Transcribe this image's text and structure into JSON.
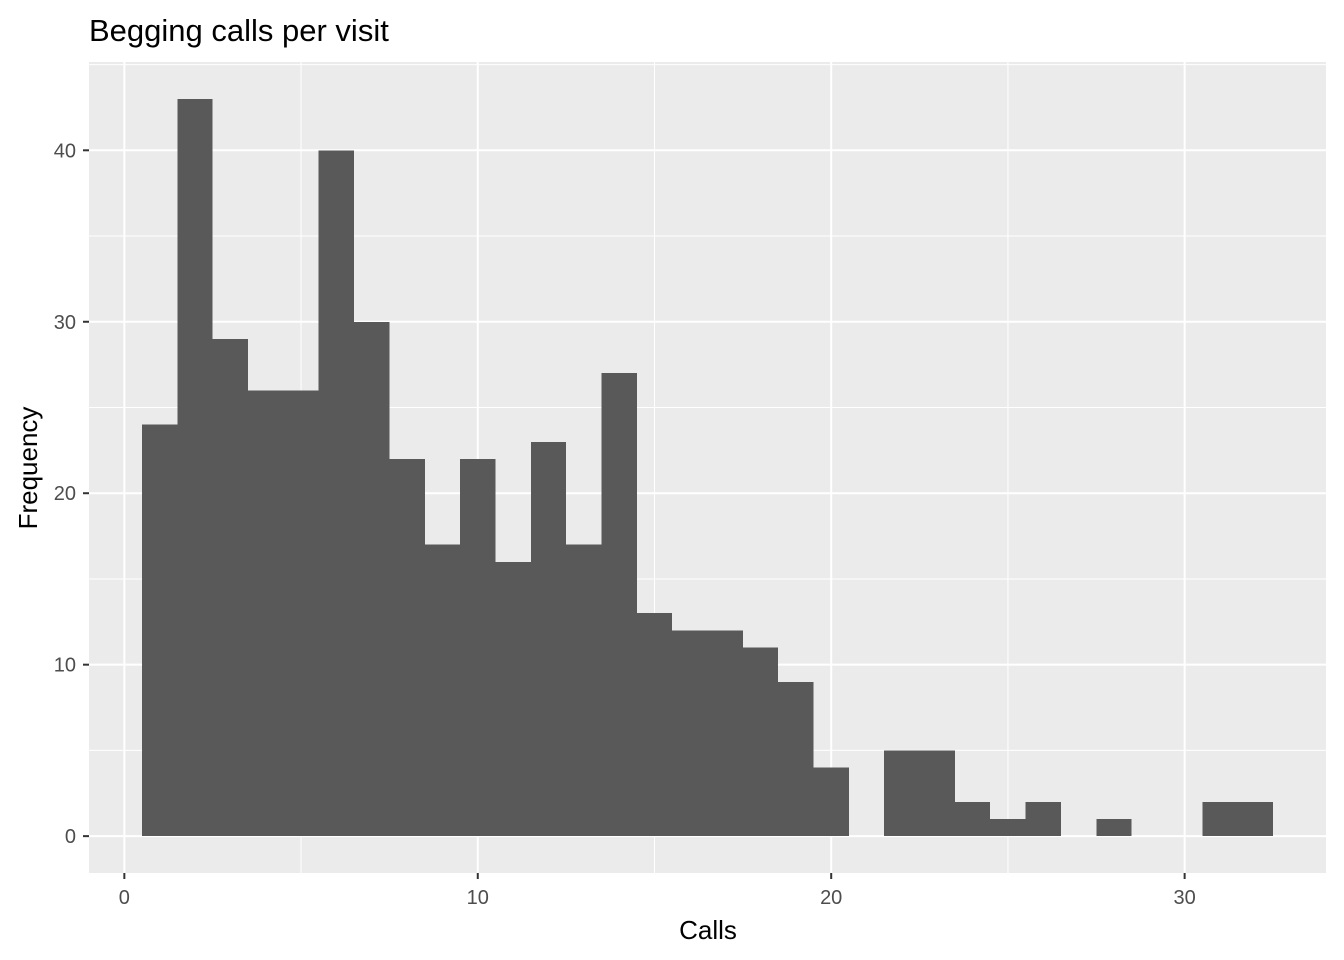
{
  "chart_data": {
    "type": "bar",
    "title": "Begging calls per visit",
    "xlabel": "Calls",
    "ylabel": "Frequency",
    "xlim": [
      -1,
      34
    ],
    "ylim": [
      -2.15,
      45.15
    ],
    "x_ticks": [
      0,
      10,
      20,
      30
    ],
    "y_ticks": [
      0,
      10,
      20,
      30,
      40
    ],
    "grid": true,
    "bin_width": 1,
    "bins": [
      {
        "x": 1,
        "count": 24
      },
      {
        "x": 2,
        "count": 43
      },
      {
        "x": 3,
        "count": 29
      },
      {
        "x": 4,
        "count": 26
      },
      {
        "x": 5,
        "count": 26
      },
      {
        "x": 6,
        "count": 40
      },
      {
        "x": 7,
        "count": 30
      },
      {
        "x": 8,
        "count": 22
      },
      {
        "x": 9,
        "count": 17
      },
      {
        "x": 10,
        "count": 22
      },
      {
        "x": 11,
        "count": 16
      },
      {
        "x": 12,
        "count": 23
      },
      {
        "x": 13,
        "count": 17
      },
      {
        "x": 14,
        "count": 27
      },
      {
        "x": 15,
        "count": 13
      },
      {
        "x": 16,
        "count": 12
      },
      {
        "x": 17,
        "count": 12
      },
      {
        "x": 18,
        "count": 11
      },
      {
        "x": 19,
        "count": 9
      },
      {
        "x": 20,
        "count": 4
      },
      {
        "x": 21,
        "count": 0
      },
      {
        "x": 22,
        "count": 5
      },
      {
        "x": 23,
        "count": 5
      },
      {
        "x": 24,
        "count": 2
      },
      {
        "x": 25,
        "count": 1
      },
      {
        "x": 26,
        "count": 2
      },
      {
        "x": 27,
        "count": 0
      },
      {
        "x": 28,
        "count": 1
      },
      {
        "x": 29,
        "count": 0
      },
      {
        "x": 30,
        "count": 0
      },
      {
        "x": 31,
        "count": 2
      },
      {
        "x": 32,
        "count": 2
      }
    ],
    "colors": {
      "panel_background": "#ebebeb",
      "grid_major": "#ffffff",
      "bar_fill": "#595959",
      "tick_label": "#4d4d4d",
      "axis_title": "#000000"
    }
  }
}
